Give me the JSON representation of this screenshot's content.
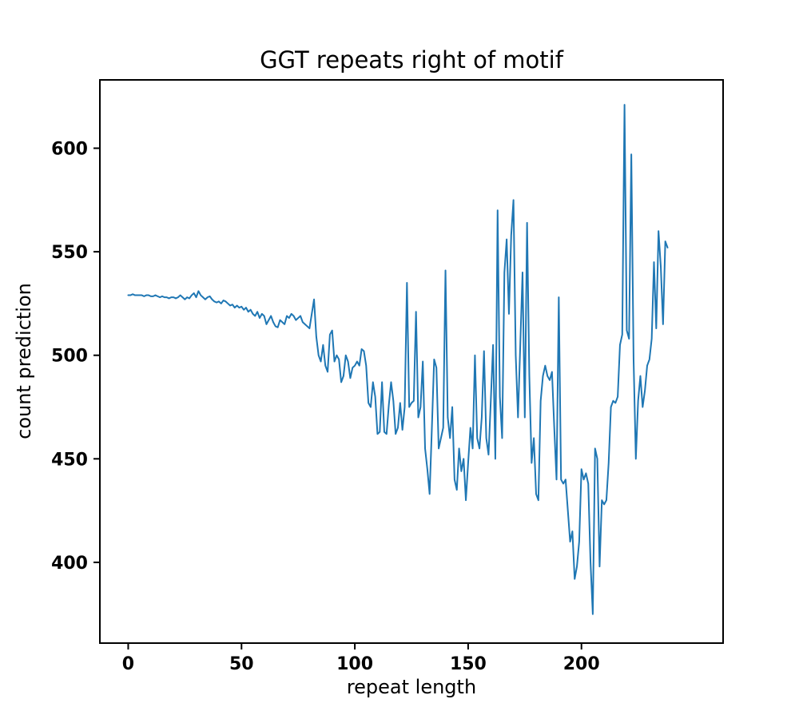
{
  "figure": {
    "background": "#ffffff"
  },
  "chart_data": {
    "type": "line",
    "title": "GGT repeats right of motif",
    "xlabel": "repeat length",
    "ylabel": "count prediction",
    "line_color": "#1f77b4",
    "legend": "none",
    "grid": false,
    "xlim": [
      -12.5,
      262.5
    ],
    "ylim": [
      361,
      633
    ],
    "x_ticks": [
      0,
      50,
      100,
      150,
      200
    ],
    "y_ticks": [
      400,
      450,
      500,
      550,
      600
    ],
    "x_start": 0,
    "x_step": 1,
    "values": [
      529,
      529,
      529.5,
      529,
      529,
      529,
      529,
      528.5,
      529,
      529,
      528.5,
      528.5,
      529,
      528.5,
      528,
      528.5,
      528,
      528,
      527.5,
      528,
      528,
      527.5,
      528,
      529,
      528,
      527,
      528,
      527.5,
      529,
      530,
      528,
      531,
      529,
      528,
      527,
      528,
      528.5,
      527,
      526,
      525.5,
      526,
      525,
      526.5,
      526,
      525,
      524,
      524.5,
      523,
      524,
      523,
      523.5,
      522,
      523,
      521,
      522,
      520,
      519,
      521,
      518,
      520,
      519,
      515,
      517,
      519,
      516,
      514,
      513.5,
      517,
      516,
      515,
      519,
      518,
      520,
      519,
      517,
      518,
      519,
      516,
      515,
      514,
      513,
      520,
      527,
      509,
      500,
      497,
      505,
      495,
      492,
      510,
      512,
      497,
      500,
      498,
      487,
      490,
      500,
      497,
      489,
      494,
      495,
      497,
      495,
      503,
      502,
      495,
      477,
      475,
      487,
      480,
      462,
      463,
      487,
      463,
      462,
      476,
      487,
      478,
      462,
      465,
      477,
      464,
      475,
      535,
      475,
      477,
      478,
      521,
      470,
      475,
      497,
      455,
      445,
      433,
      465,
      498,
      494,
      455,
      460,
      465,
      541,
      470,
      460,
      475,
      440,
      435,
      455,
      444,
      450,
      430,
      448,
      465,
      455,
      500,
      460,
      455,
      470,
      502,
      460,
      452,
      478,
      505,
      450,
      570,
      480,
      460,
      540,
      556,
      520,
      558,
      575,
      500,
      470,
      505,
      540,
      470,
      564,
      490,
      448,
      460,
      433,
      430,
      478,
      490,
      495,
      490,
      488,
      492,
      465,
      440,
      528,
      440,
      438,
      440,
      425,
      410,
      415,
      392,
      398,
      410,
      445,
      440,
      443,
      438,
      400,
      375,
      455,
      450,
      398,
      430,
      428,
      430,
      448,
      475,
      478,
      477,
      480,
      505,
      510,
      621,
      512,
      508,
      597,
      498,
      450,
      478,
      490,
      475,
      483,
      495,
      498,
      508,
      545,
      513,
      560,
      543,
      515,
      555,
      552
    ]
  }
}
